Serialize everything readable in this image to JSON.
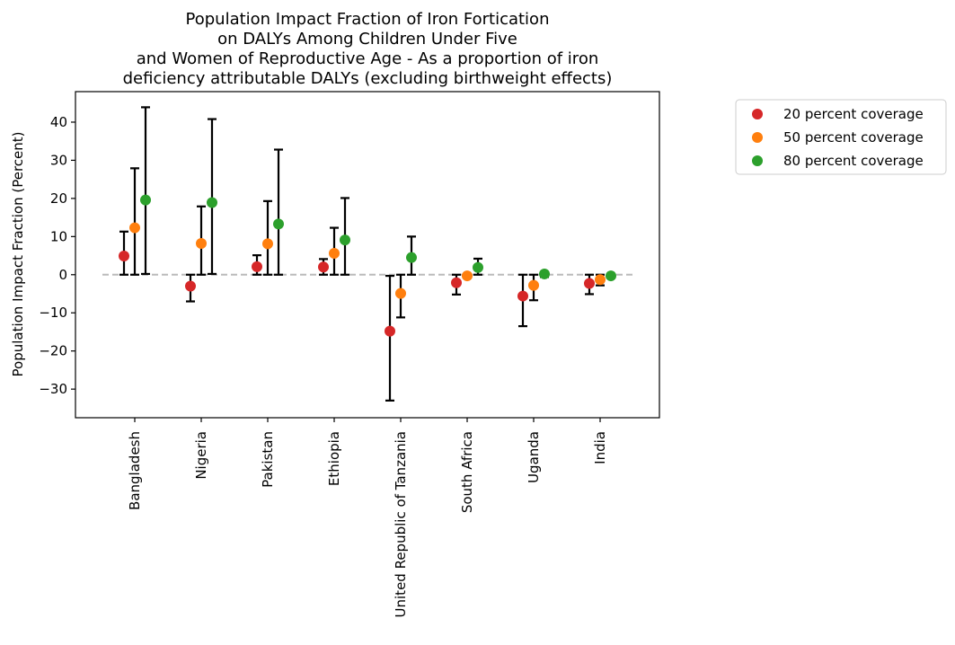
{
  "chart_data": {
    "type": "scatter",
    "title_lines": [
      "Population Impact Fraction of Iron Fortication",
      "on DALYs Among Children Under Five",
      "and Women of Reproductive Age - As a proportion of iron",
      "deficiency attributable DALYs (excluding birthweight effects)"
    ],
    "ylabel": "Population Impact Fraction (Percent)",
    "xlabel": "",
    "ylim": [
      -37.5,
      48
    ],
    "yticks": [
      -30,
      -20,
      -10,
      0,
      10,
      20,
      30,
      40
    ],
    "ytick_labels": [
      "−30",
      "−20",
      "−10",
      "0",
      "10",
      "20",
      "30",
      "40"
    ],
    "categories": [
      "Bangladesh",
      "Nigeria",
      "Pakistan",
      "Ethiopia",
      "United Republic of Tanzania",
      "South Africa",
      "Uganda",
      "India"
    ],
    "reference_line": 0,
    "legend_position": "outside upper right",
    "series": [
      {
        "name": "20 percent coverage",
        "color": "#d62728",
        "values": [
          4.9,
          -3.0,
          2.1,
          2.0,
          -14.8,
          -2.1,
          -5.6,
          -2.3
        ],
        "lower": [
          0.0,
          -7.0,
          0.0,
          0.0,
          -33.0,
          -5.2,
          -13.5,
          -5.1
        ],
        "upper": [
          11.3,
          0.0,
          5.1,
          4.1,
          -0.3,
          0.0,
          0.0,
          0.0
        ]
      },
      {
        "name": "50 percent coverage",
        "color": "#ff7f0e",
        "values": [
          12.3,
          8.2,
          8.1,
          5.6,
          -4.9,
          -0.3,
          -2.8,
          -1.3
        ],
        "lower": [
          0.0,
          0.0,
          0.0,
          0.0,
          -11.2,
          -0.8,
          -6.7,
          -2.8
        ],
        "upper": [
          27.9,
          17.9,
          19.3,
          12.3,
          0.0,
          0.0,
          0.0,
          0.0
        ]
      },
      {
        "name": "80 percent coverage",
        "color": "#2ca02c",
        "values": [
          19.6,
          18.9,
          13.3,
          9.1,
          4.5,
          1.9,
          0.2,
          -0.3
        ],
        "lower": [
          0.2,
          0.2,
          0.0,
          0.0,
          0.0,
          0.0,
          -0.6,
          -0.7
        ],
        "upper": [
          43.9,
          40.8,
          32.8,
          20.1,
          10.0,
          4.2,
          0.7,
          0.0
        ]
      }
    ]
  }
}
